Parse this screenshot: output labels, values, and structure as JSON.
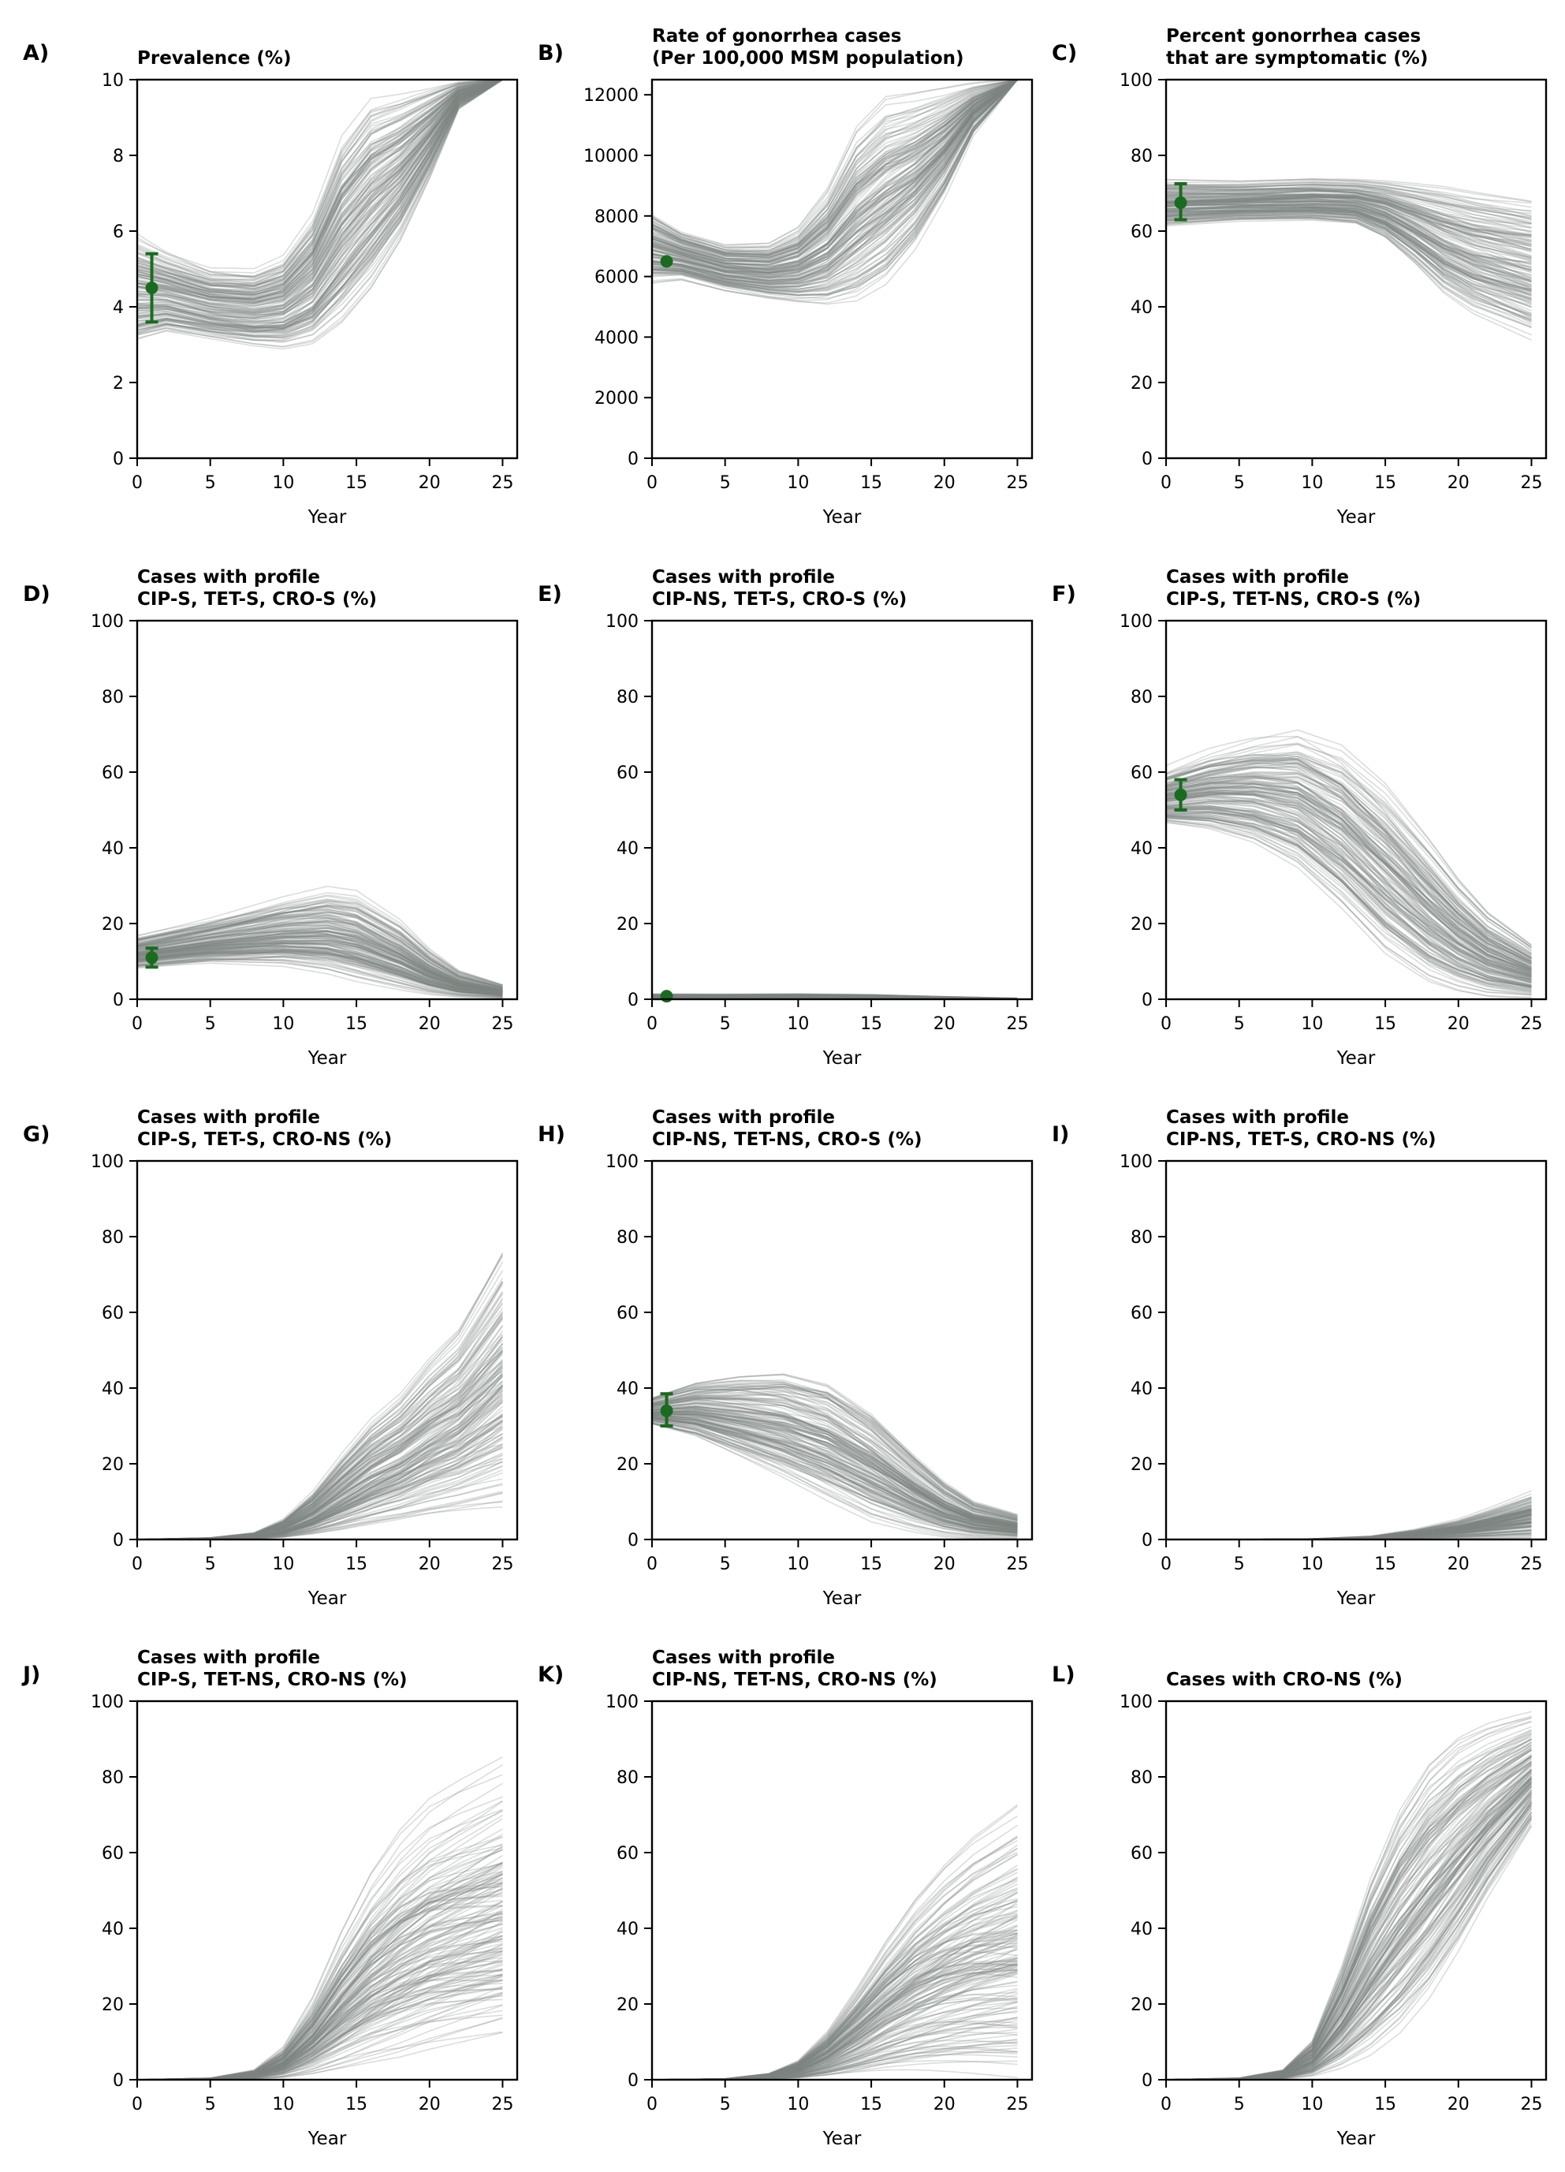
{
  "figure": {
    "line_color": "#7d8680",
    "observed_color": "#1a6b1f"
  },
  "chart_data": [
    {
      "type": "line",
      "panel": "A)",
      "title_lines": [
        "Prevalence (%)"
      ],
      "xlabel": "Year",
      "xlim": [
        0,
        26
      ],
      "ylim": [
        0,
        10
      ],
      "xticks": [
        0,
        5,
        10,
        15,
        20,
        25
      ],
      "yticks": [
        0,
        2,
        4,
        6,
        8,
        10
      ],
      "envelope": {
        "x": [
          0,
          2,
          5,
          8,
          10,
          12,
          14,
          16,
          18,
          20,
          22,
          25
        ],
        "low": [
          3.1,
          3.3,
          3.1,
          2.9,
          2.8,
          2.9,
          3.4,
          4.3,
          5.6,
          7.3,
          9.2,
          10
        ],
        "high": [
          6.0,
          5.6,
          5.2,
          5.2,
          5.6,
          6.8,
          9.0,
          10,
          10,
          10,
          10,
          10
        ]
      },
      "observed": {
        "x": 1,
        "y": 4.5,
        "lower": 3.6,
        "upper": 5.4
      }
    },
    {
      "type": "line",
      "panel": "B)",
      "title_lines": [
        "Rate of gonorrhea cases",
        "(Per 100,000 MSM population)"
      ],
      "xlabel": "Year",
      "xlim": [
        0,
        26
      ],
      "ylim": [
        0,
        12500
      ],
      "xticks": [
        0,
        5,
        10,
        15,
        20,
        25
      ],
      "yticks": [
        0,
        2000,
        4000,
        6000,
        8000,
        10000,
        12000
      ],
      "envelope": {
        "x": [
          0,
          2,
          5,
          8,
          10,
          12,
          14,
          16,
          18,
          20,
          22,
          25
        ],
        "low": [
          5700,
          5800,
          5400,
          5100,
          4900,
          4700,
          4700,
          5300,
          6600,
          8400,
          10600,
          12500
        ],
        "high": [
          8200,
          7600,
          7200,
          7300,
          7900,
          9300,
          11500,
          12500,
          12500,
          12500,
          12500,
          12500
        ]
      },
      "observed": {
        "x": 1,
        "y": 6500
      }
    },
    {
      "type": "line",
      "panel": "C)",
      "title_lines": [
        "Percent gonorrhea cases",
        "that are symptomatic (%)"
      ],
      "xlabel": "Year",
      "xlim": [
        0,
        26
      ],
      "ylim": [
        0,
        100
      ],
      "xticks": [
        0,
        5,
        10,
        15,
        20,
        25
      ],
      "yticks": [
        0,
        20,
        40,
        60,
        80,
        100
      ],
      "envelope": {
        "x": [
          0,
          5,
          10,
          13,
          15,
          17,
          19,
          21,
          23,
          25
        ],
        "low": [
          61,
          62,
          62,
          61,
          57,
          50,
          42,
          37,
          34,
          31
        ],
        "high": [
          74,
          74,
          75,
          75,
          75,
          75,
          75,
          74,
          73,
          72
        ]
      },
      "observed": {
        "x": 1,
        "y": 67.5,
        "lower": 63,
        "upper": 72.5
      }
    },
    {
      "type": "line",
      "panel": "D)",
      "title_lines": [
        "Cases with profile",
        "CIP-S, TET-S, CRO-S (%)"
      ],
      "xlabel": "Year",
      "xlim": [
        0,
        26
      ],
      "ylim": [
        0,
        100
      ],
      "xticks": [
        0,
        5,
        10,
        15,
        20,
        25
      ],
      "yticks": [
        0,
        20,
        40,
        60,
        80,
        100
      ],
      "envelope": {
        "x": [
          0,
          5,
          10,
          13,
          15,
          18,
          20,
          22,
          25
        ],
        "low": [
          8,
          9,
          8,
          6,
          4,
          2,
          1,
          0.5,
          0.3
        ],
        "high": [
          17,
          22,
          28,
          31,
          30,
          22,
          14,
          8,
          4
        ]
      },
      "observed": {
        "x": 1,
        "y": 11,
        "lower": 8.5,
        "upper": 13.5
      }
    },
    {
      "type": "line",
      "panel": "E)",
      "title_lines": [
        "Cases with profile",
        "CIP-NS, TET-S, CRO-S (%)"
      ],
      "xlabel": "Year",
      "xlim": [
        0,
        26
      ],
      "ylim": [
        0,
        100
      ],
      "xticks": [
        0,
        5,
        10,
        15,
        20,
        25
      ],
      "yticks": [
        0,
        20,
        40,
        60,
        80,
        100
      ],
      "envelope": {
        "x": [
          0,
          5,
          10,
          15,
          20,
          25
        ],
        "low": [
          0.2,
          0.2,
          0.2,
          0.1,
          0,
          0
        ],
        "high": [
          1.5,
          1.5,
          1.6,
          1.4,
          0.8,
          0.3
        ]
      },
      "observed": {
        "x": 1,
        "y": 0.8
      }
    },
    {
      "type": "line",
      "panel": "F)",
      "title_lines": [
        "Cases with profile",
        "CIP-S, TET-NS, CRO-S (%)"
      ],
      "xlabel": "Year",
      "xlim": [
        0,
        26
      ],
      "ylim": [
        0,
        100
      ],
      "xticks": [
        0,
        5,
        10,
        15,
        20,
        25
      ],
      "yticks": [
        0,
        20,
        40,
        60,
        80,
        100
      ],
      "envelope": {
        "x": [
          0,
          3,
          6,
          9,
          12,
          15,
          18,
          20,
          22,
          25
        ],
        "low": [
          46,
          44,
          40,
          33,
          22,
          10,
          3,
          1,
          0,
          0
        ],
        "high": [
          62,
          68,
          73,
          77,
          74,
          64,
          48,
          36,
          26,
          16
        ]
      },
      "observed": {
        "x": 1,
        "y": 54,
        "lower": 50,
        "upper": 58
      }
    },
    {
      "type": "line",
      "panel": "G)",
      "title_lines": [
        "Cases with profile",
        "CIP-S, TET-S, CRO-NS (%)"
      ],
      "xlabel": "Year",
      "xlim": [
        0,
        26
      ],
      "ylim": [
        0,
        100
      ],
      "xticks": [
        0,
        5,
        10,
        15,
        20,
        25
      ],
      "yticks": [
        0,
        20,
        40,
        60,
        80,
        100
      ],
      "envelope": {
        "x": [
          0,
          5,
          8,
          10,
          12,
          14,
          16,
          18,
          20,
          22,
          25
        ],
        "low": [
          0,
          0,
          0,
          0,
          0.1,
          0.3,
          1,
          2,
          3,
          4,
          5
        ],
        "high": [
          0,
          0.5,
          2,
          6,
          14,
          25,
          35,
          42,
          52,
          60,
          81
        ]
      }
    },
    {
      "type": "line",
      "panel": "H)",
      "title_lines": [
        "Cases with profile",
        "CIP-NS, TET-NS, CRO-S (%)"
      ],
      "xlabel": "Year",
      "xlim": [
        0,
        26
      ],
      "ylim": [
        0,
        100
      ],
      "xticks": [
        0,
        5,
        10,
        15,
        20,
        25
      ],
      "yticks": [
        0,
        20,
        40,
        60,
        80,
        100
      ],
      "envelope": {
        "x": [
          0,
          3,
          6,
          9,
          12,
          15,
          18,
          20,
          22,
          25
        ],
        "low": [
          30,
          26,
          20,
          14,
          8,
          3,
          1,
          0.2,
          0,
          0
        ],
        "high": [
          38,
          43,
          46,
          48,
          46,
          38,
          25,
          17,
          11,
          7
        ]
      },
      "observed": {
        "x": 1,
        "y": 34,
        "lower": 30,
        "upper": 38.5
      }
    },
    {
      "type": "line",
      "panel": "I)",
      "title_lines": [
        "Cases with profile",
        "CIP-NS, TET-S, CRO-NS (%)"
      ],
      "xlabel": "Year",
      "xlim": [
        0,
        26
      ],
      "ylim": [
        0,
        100
      ],
      "xticks": [
        0,
        5,
        10,
        15,
        20,
        25
      ],
      "yticks": [
        0,
        20,
        40,
        60,
        80,
        100
      ],
      "envelope": {
        "x": [
          0,
          5,
          10,
          14,
          17,
          20,
          22,
          25
        ],
        "low": [
          0,
          0,
          0,
          0,
          0,
          0,
          0,
          0
        ],
        "high": [
          0,
          0,
          0.2,
          1,
          3,
          6,
          9,
          14
        ]
      }
    },
    {
      "type": "line",
      "panel": "J)",
      "title_lines": [
        "Cases with profile",
        "CIP-S, TET-NS, CRO-NS (%)"
      ],
      "xlabel": "Year",
      "xlim": [
        0,
        26
      ],
      "ylim": [
        0,
        100
      ],
      "xticks": [
        0,
        5,
        10,
        15,
        20,
        25
      ],
      "yticks": [
        0,
        20,
        40,
        60,
        80,
        100
      ],
      "envelope": {
        "x": [
          0,
          5,
          8,
          10,
          12,
          14,
          16,
          18,
          20,
          22,
          25
        ],
        "low": [
          0,
          0,
          0,
          0,
          0,
          0.3,
          1,
          2,
          4,
          6,
          9
        ],
        "high": [
          0,
          0.5,
          3,
          10,
          25,
          45,
          62,
          74,
          82,
          86,
          91
        ]
      }
    },
    {
      "type": "line",
      "panel": "K)",
      "title_lines": [
        "Cases with profile",
        "CIP-NS, TET-NS, CRO-NS (%)"
      ],
      "xlabel": "Year",
      "xlim": [
        0,
        26
      ],
      "ylim": [
        0,
        100
      ],
      "xticks": [
        0,
        5,
        10,
        15,
        20,
        25
      ],
      "yticks": [
        0,
        20,
        40,
        60,
        80,
        100
      ],
      "envelope": {
        "x": [
          0,
          5,
          8,
          10,
          12,
          14,
          16,
          18,
          20,
          22,
          25
        ],
        "low": [
          0,
          0,
          0,
          0,
          0,
          0,
          0,
          0,
          0,
          0,
          0
        ],
        "high": [
          0,
          0.3,
          2,
          6,
          15,
          28,
          42,
          54,
          63,
          70,
          77
        ]
      }
    },
    {
      "type": "line",
      "panel": "L)",
      "title_lines": [
        "Cases with CRO-NS (%)"
      ],
      "xlabel": "Year",
      "xlim": [
        0,
        26
      ],
      "ylim": [
        0,
        100
      ],
      "xticks": [
        0,
        5,
        10,
        15,
        20,
        25
      ],
      "yticks": [
        0,
        20,
        40,
        60,
        80,
        100
      ],
      "envelope": {
        "x": [
          0,
          5,
          8,
          10,
          12,
          14,
          16,
          18,
          20,
          22,
          25
        ],
        "low": [
          0,
          0,
          0,
          0.2,
          1,
          3,
          8,
          17,
          30,
          45,
          65
        ],
        "high": [
          0,
          0.5,
          3,
          12,
          35,
          62,
          82,
          94,
          99,
          100,
          100
        ]
      }
    }
  ]
}
